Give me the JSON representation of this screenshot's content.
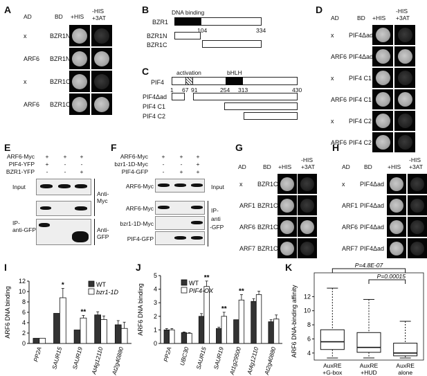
{
  "panel_letters": {
    "a": "A",
    "b": "B",
    "c": "C",
    "d": "D",
    "e": "E",
    "f": "F",
    "g": "G",
    "h": "H",
    "i": "I",
    "j": "J",
    "k": "K"
  },
  "yeast_headers": {
    "ad": "AD",
    "bd": "BD",
    "his": "+HIS",
    "minus_his": "-HIS",
    "three_at": "+3AT"
  },
  "panel_a": {
    "rows": [
      [
        "x",
        "BZR1N"
      ],
      [
        "ARF6",
        "BZR1N"
      ],
      [
        "x",
        "BZR1C"
      ],
      [
        "ARF6",
        "BZR1C"
      ]
    ]
  },
  "panel_b": {
    "dna_binding": "DNA binding",
    "bzr1": "BZR1",
    "n104": "104",
    "n334": "334",
    "bzr1n": "BZR1N",
    "bzr1c": "BZR1C"
  },
  "panel_c": {
    "activation": "activation",
    "bhlh": "bHLH",
    "pif4": "PIF4",
    "nums": [
      "1",
      "67",
      "91",
      "254",
      "313",
      "430"
    ],
    "pif4_ad": "PIF4Δad",
    "pif4_c1": "PIF4 C1",
    "pif4_c2": "PIF4 C2"
  },
  "panel_d": {
    "rows": [
      [
        "x",
        "PIF4Δad"
      ],
      [
        "ARF6",
        "PIF4Δad"
      ],
      [
        "x",
        "PIF4 C1"
      ],
      [
        "ARF6",
        "PIF4 C1"
      ],
      [
        "x",
        "PIF4 C2"
      ],
      [
        "ARF6",
        "PIF4 C2"
      ]
    ]
  },
  "panel_e": {
    "rows": [
      {
        "label": "ARF6-Myc",
        "vals": [
          "+",
          "+",
          "+"
        ]
      },
      {
        "label": "PIF4-YFP",
        "vals": [
          "+",
          "-",
          "-"
        ]
      },
      {
        "label": "BZR1-YFP",
        "vals": [
          "-",
          "-",
          "+"
        ]
      }
    ],
    "input": "Input",
    "ip": "IP-",
    "ip2": "anti-GFP",
    "anti_myc": "Anti-",
    "anti_myc2": "Myc",
    "anti_gfp": "Anti-",
    "anti_gfp2": "GFP"
  },
  "panel_f": {
    "rows": [
      {
        "label": "ARF6-Myc",
        "vals": [
          "+",
          "+",
          "+"
        ]
      },
      {
        "label": "bzr1-1D-Myc",
        "vals": [
          "-",
          "-",
          "+"
        ]
      },
      {
        "label": "PIF4-GFP",
        "vals": [
          "-",
          "+",
          "+"
        ]
      }
    ],
    "blots": [
      "ARF6-Myc",
      "ARF6-Myc",
      "bzr1-1D-Myc",
      "PIF4-GFP"
    ],
    "input": "Input",
    "ip": "IP-",
    "ip2": "anti",
    "ip3": "-GFP"
  },
  "panel_g": {
    "rows": [
      [
        "x",
        "BZR1C"
      ],
      [
        "ARF1",
        "BZR1C"
      ],
      [
        "ARF6",
        "BZR1C"
      ],
      [
        "ARF7",
        "BZR1C"
      ]
    ]
  },
  "panel_h": {
    "rows": [
      [
        "x",
        "PIF4Δad"
      ],
      [
        "ARF1",
        "PIF4Δad"
      ],
      [
        "ARF6",
        "PIF4Δad"
      ],
      [
        "ARF7",
        "PIF4Δad"
      ]
    ]
  },
  "panel_i": {
    "ylabel": "ARF6 DNA binding",
    "legend": [
      "WT",
      "bzr1-1D"
    ],
    "stars": [
      "*",
      "**"
    ]
  },
  "panel_j": {
    "ylabel": "ARF6 DNA binding",
    "legend": [
      "WT",
      "PIF4-OX"
    ],
    "stars": [
      "**",
      "**",
      "**"
    ]
  },
  "panel_k": {
    "ylabel": "ARF6 DNA-binding affinity",
    "p1": "P=4.8E-07",
    "p2": "P=0.00015",
    "cats": [
      [
        "AuxRE",
        "+G-box"
      ],
      [
        "AuxRE",
        "+HUD"
      ],
      [
        "AuxRE",
        "alone"
      ]
    ]
  },
  "chart_data": [
    {
      "type": "bar",
      "panel": "I",
      "categories": [
        "PP2A",
        "SAUR15",
        "SAUR19",
        "At4g12110",
        "At2g40880"
      ],
      "ylim": [
        0,
        12
      ],
      "yticks": [
        0,
        2,
        4,
        6,
        8,
        10,
        12
      ],
      "ylabel": "ARF6 DNA binding",
      "series": [
        {
          "name": "WT",
          "values": [
            1.0,
            5.8,
            2.6,
            5.5,
            3.6
          ],
          "errors": [
            0,
            0,
            0,
            0.6,
            0.8
          ]
        },
        {
          "name": "bzr1-1D",
          "values": [
            1.0,
            8.8,
            4.9,
            4.6,
            2.9
          ],
          "errors": [
            0,
            1.8,
            0.5,
            0.7,
            1.2
          ]
        }
      ],
      "annotations": [
        {
          "category": "SAUR15",
          "text": "*"
        },
        {
          "category": "SAUR19",
          "text": "**"
        }
      ]
    },
    {
      "type": "bar",
      "panel": "J",
      "categories": [
        "PP2A",
        "UBC30",
        "SAUR15",
        "SAUR19",
        "At1g29500",
        "At4g12110",
        "At2g40880"
      ],
      "ylim": [
        0,
        5
      ],
      "yticks": [
        0,
        1,
        2,
        3,
        4,
        5
      ],
      "ylabel": "ARF6 DNA binding",
      "series": [
        {
          "name": "WT",
          "values": [
            1.0,
            0.8,
            2.0,
            1.1,
            1.75,
            3.1,
            1.6
          ],
          "errors": [
            0.1,
            0.05,
            0.2,
            0.1,
            0,
            0.2,
            0.15
          ]
        },
        {
          "name": "PIF4-OX",
          "values": [
            1.0,
            0.75,
            4.2,
            2.0,
            3.2,
            3.6,
            1.8
          ],
          "errors": [
            0.1,
            0.05,
            0.4,
            0.3,
            0.4,
            0.25,
            0.3
          ]
        }
      ],
      "annotations": [
        {
          "category": "SAUR15",
          "text": "**"
        },
        {
          "category": "SAUR19",
          "text": "**"
        },
        {
          "category": "At1g29500",
          "text": "**"
        }
      ]
    },
    {
      "type": "box",
      "panel": "K",
      "categories": [
        "AuxRE +G-box",
        "AuxRE +HUD",
        "AuxRE alone"
      ],
      "ylim": [
        3,
        14
      ],
      "yticks": [
        4,
        6,
        8,
        10,
        12
      ],
      "ylabel": "ARF6 DNA-binding affinity",
      "boxes": [
        {
          "min": 3.3,
          "q1": 4.5,
          "median": 5.6,
          "q3": 7.3,
          "max": 13.2
        },
        {
          "min": 3.3,
          "q1": 4.1,
          "median": 4.8,
          "q3": 6.9,
          "max": 11.6
        },
        {
          "min": 3.3,
          "q1": 3.6,
          "median": 4.0,
          "q3": 5.4,
          "max": 8.5
        }
      ],
      "annotations": [
        "P=4.8E-07",
        "P=0.00015"
      ]
    }
  ]
}
